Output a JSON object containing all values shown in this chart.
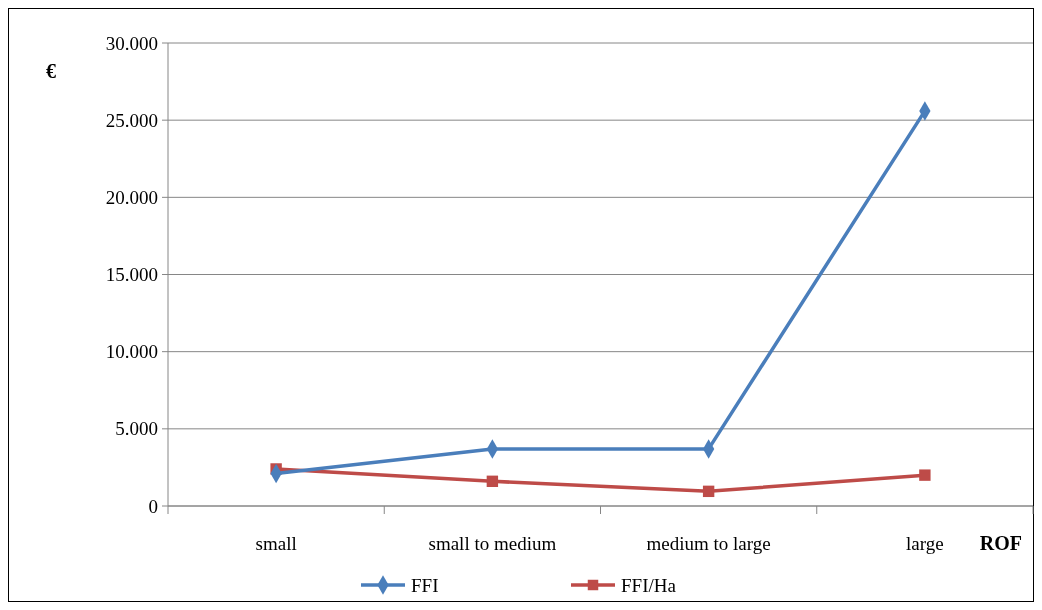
{
  "chart_data": {
    "type": "line",
    "xlabel": "ROF",
    "ylabel": "€",
    "categories": [
      "small",
      "small to medium",
      "medium to large",
      "large"
    ],
    "series": [
      {
        "name": "FFI",
        "color": "#4a7ebb",
        "marker": "diamond",
        "values": [
          2100,
          3700,
          3700,
          25600
        ]
      },
      {
        "name": "FFI/Ha",
        "color": "#be4b48",
        "marker": "square",
        "values": [
          2400,
          1600,
          950,
          2000
        ]
      }
    ],
    "ylim": [
      0,
      30000
    ],
    "yticks": [
      0,
      {
        "value": 5000,
        "label": "5.000"
      },
      {
        "value": 10000,
        "label": "10.000"
      },
      {
        "value": 15000,
        "label": "15.000"
      },
      {
        "value": 20000,
        "label": "20.000"
      },
      {
        "value": 25000,
        "label": "25.000"
      },
      {
        "value": 30000,
        "label": "30.000"
      }
    ],
    "grid": "y",
    "legend": "bottom",
    "line_style": "solid"
  }
}
